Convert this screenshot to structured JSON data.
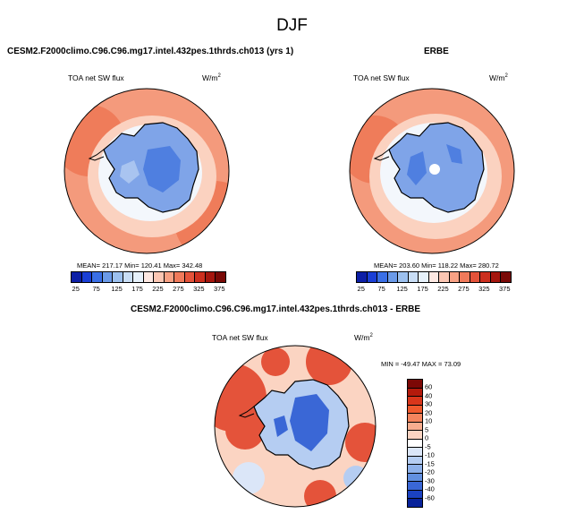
{
  "title": "DJF",
  "panels": {
    "model": {
      "title": "CESM2.F2000climo.C96.C96.mg17.intel.432pes.1thrds.ch013 (yrs 1)",
      "variable": "TOA net SW flux",
      "units_base": "W/m",
      "units_exp": "2",
      "stats": "MEAN= 217.17  Min= 120.41  Max= 342.48"
    },
    "obs": {
      "title": "ERBE",
      "variable": "TOA net SW flux",
      "units_base": "W/m",
      "units_exp": "2",
      "stats": "MEAN= 203.60  Min= 118.22  Max= 280.72"
    },
    "diff": {
      "title": "CESM2.F2000climo.C96.C96.mg17.intel.432pes.1thrds.ch013 - ERBE",
      "variable": "TOA net SW flux",
      "units_base": "W/m",
      "units_exp": "2",
      "stats": "MIN = -49.47 MAX = 73.09"
    }
  },
  "colorbar_abs": {
    "ticks": [
      "25",
      "75",
      "125",
      "175",
      "225",
      "275",
      "325",
      "375"
    ],
    "colors": [
      "#0d1fa6",
      "#1a3fd6",
      "#3a6fe6",
      "#6b9ae8",
      "#9cc0ee",
      "#c9def6",
      "#e6f1fb",
      "#fde8e2",
      "#fbc6b3",
      "#f8a184",
      "#f07a5b",
      "#e4533a",
      "#cc2f1e",
      "#a5160e",
      "#790906"
    ]
  },
  "colorbar_diff": {
    "labels": [
      "60",
      "40",
      "30",
      "20",
      "10",
      "5",
      "0",
      "-5",
      "-10",
      "-15",
      "-20",
      "-30",
      "-40",
      "-60"
    ],
    "colors": [
      "#7c0806",
      "#b41a0c",
      "#d9361b",
      "#f05a2e",
      "#f4845d",
      "#f8ad8f",
      "#fbd4c2",
      "#ffffff",
      "#dbe6f8",
      "#b5cdf2",
      "#8eb1ea",
      "#6290e0",
      "#3a67d6",
      "#1b42c2",
      "#08229a"
    ]
  },
  "map_colors": {
    "ocean_abs": "#f49a7c",
    "ocean_abs_inner": "#fbd2c0",
    "ocean_abs_edge": "#ef7c5a",
    "ice_ring": "#f3f7fc",
    "continent": "#7fa4e8",
    "continent_dark": "#4f7fe0",
    "continent_pale": "#a9c4f0",
    "diff_ocean": "#fbd4c2",
    "diff_hot": "#e4533a",
    "diff_cold": "#3a67d6"
  }
}
